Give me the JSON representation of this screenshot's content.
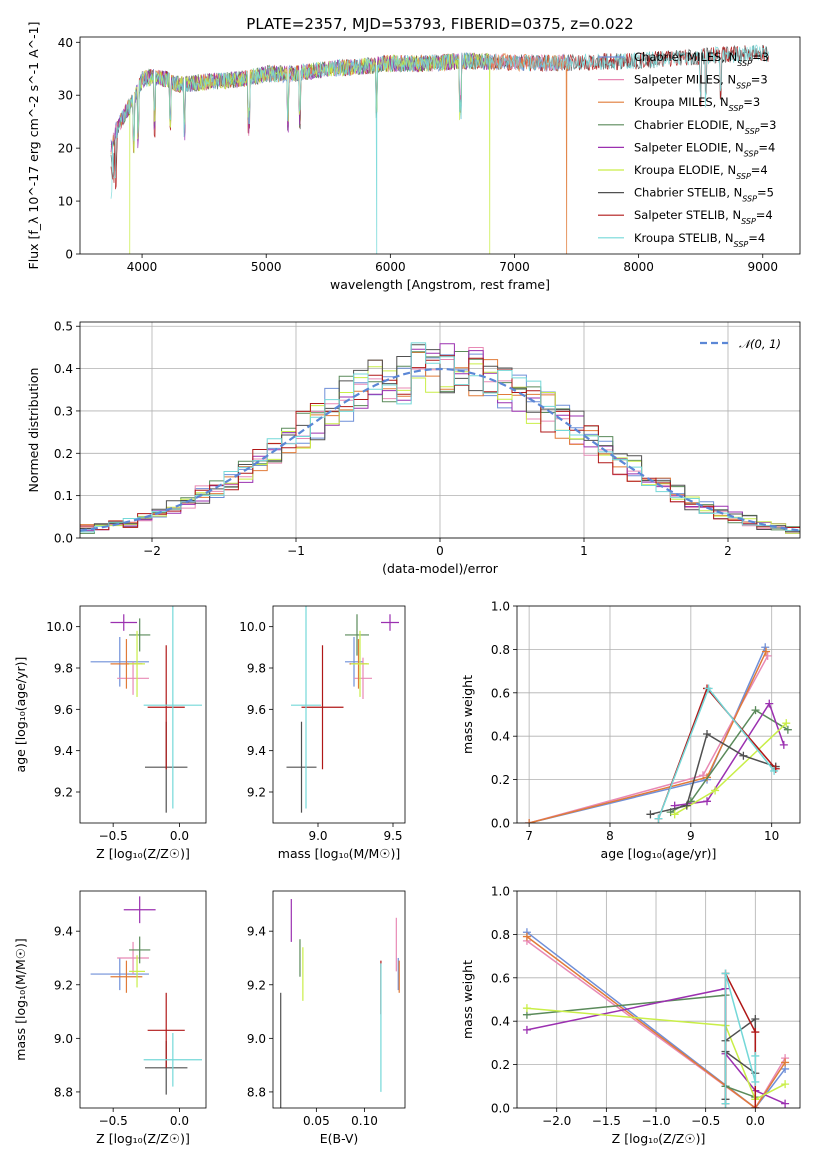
{
  "figure": {
    "title": "PLATE=2357, MJD=53793, FIBERID=0375, z=0.022"
  },
  "models": [
    {
      "name": "Chabrier MILES",
      "nssp": "3",
      "color": "#6f8fd8"
    },
    {
      "name": "Salpeter MILES",
      "nssp": "3",
      "color": "#e889b5"
    },
    {
      "name": "Kroupa MILES",
      "nssp": "3",
      "color": "#e07b39"
    },
    {
      "name": "Chabrier ELODIE",
      "nssp": "3",
      "color": "#5a8a5a"
    },
    {
      "name": "Salpeter ELODIE",
      "nssp": "4",
      "color": "#9b30b0"
    },
    {
      "name": "Kroupa ELODIE",
      "nssp": "4",
      "color": "#c9ee48"
    },
    {
      "name": "Chabrier STELIB",
      "nssp": "5",
      "color": "#505050"
    },
    {
      "name": "Salpeter STELIB",
      "nssp": "4",
      "color": "#b01818"
    },
    {
      "name": "Kroupa STELIB",
      "nssp": "4",
      "color": "#74d8d8"
    }
  ],
  "chart_data": [
    {
      "id": "spectrum",
      "type": "line",
      "xlabel": "wavelength [Angstrom, rest frame]",
      "ylabel": "Flux [f_λ 10^-17 erg cm^-2 s^-1 A^-1]",
      "xlim": [
        3500,
        9300
      ],
      "ylim": [
        0,
        41
      ],
      "xticks": [
        4000,
        5000,
        6000,
        7000,
        8000,
        9000
      ],
      "yticks": [
        0,
        10,
        20,
        30,
        40
      ],
      "continuum": {
        "x": [
          3750,
          3800,
          3850,
          3900,
          3950,
          4000,
          4100,
          4200,
          4300,
          4500,
          4800,
          5000,
          5200,
          5500,
          5800,
          6000,
          6300,
          6600,
          7000,
          7300,
          7500,
          8000,
          8300,
          8600,
          9000,
          9100
        ],
        "y": [
          20,
          24,
          26,
          28,
          30,
          33,
          33.5,
          33,
          32,
          32.5,
          33,
          34,
          34,
          35,
          35.5,
          36,
          36,
          36.5,
          36.2,
          36,
          36.2,
          36.5,
          37,
          37.5,
          38,
          37.5
        ]
      },
      "series_range": [
        {
          "series": "Chabrier MILES",
          "x": [
            3750,
            7450
          ]
        },
        {
          "series": "Salpeter MILES",
          "x": [
            3750,
            7450
          ]
        },
        {
          "series": "Kroupa MILES",
          "x": [
            3750,
            7450
          ]
        },
        {
          "series": "Chabrier ELODIE",
          "x": [
            3750,
            6800
          ]
        },
        {
          "series": "Salpeter ELODIE",
          "x": [
            3750,
            6800
          ]
        },
        {
          "series": "Kroupa ELODIE",
          "x": [
            3900,
            6800
          ]
        },
        {
          "series": "Chabrier STELIB",
          "x": [
            3750,
            9050
          ]
        },
        {
          "series": "Salpeter STELIB",
          "x": [
            3750,
            9050
          ]
        },
        {
          "series": "Kroupa STELIB",
          "x": [
            3750,
            9050
          ]
        }
      ],
      "drops": [
        {
          "x": 3900,
          "series": "Kroupa ELODIE"
        },
        {
          "x": 5890,
          "series": "Kroupa STELIB"
        },
        {
          "x": 6800,
          "series": "Kroupa ELODIE"
        },
        {
          "x": 7420,
          "series": "Kroupa MILES"
        }
      ]
    },
    {
      "id": "residuals",
      "type": "histogram",
      "xlabel": "(data-model)/error",
      "ylabel": "Normed distribution",
      "xlim": [
        -2.5,
        2.5
      ],
      "ylim": [
        0,
        0.51
      ],
      "xticks": [
        -2,
        -1,
        0,
        1,
        2
      ],
      "xtick_labels": [
        "−2",
        "−1",
        "0",
        "1",
        "2"
      ],
      "yticks": [
        0.0,
        0.1,
        0.2,
        0.3,
        0.4,
        0.5
      ],
      "ytick_labels": [
        "0.0",
        "0.1",
        "0.2",
        "0.3",
        "0.4",
        "0.5"
      ],
      "bin_width": 0.1,
      "legend": {
        "label": "𝒩(0, 1)",
        "placement": "top-right"
      },
      "grid": true
    },
    {
      "id": "age-vs-Z",
      "type": "errorbar",
      "xlabel": "Z [log₁₀(Z/Z☉)]",
      "ylabel": "age  [log₁₀(age/yr)]",
      "xlim": [
        -0.75,
        0.2
      ],
      "ylim": [
        9.05,
        10.1
      ],
      "xticks": [
        -0.5,
        0.0
      ],
      "xtick_labels": [
        "−0.5",
        "0.0"
      ],
      "yticks": [
        9.2,
        9.4,
        9.6,
        9.8,
        10.0
      ],
      "ytick_labels": [
        "9.2",
        "9.4",
        "9.6",
        "9.8",
        "10.0"
      ],
      "points": [
        {
          "series": "Chabrier MILES",
          "x": -0.45,
          "xerr": 0.22,
          "y": 9.83,
          "yerr": 0.12
        },
        {
          "series": "Salpeter MILES",
          "x": -0.35,
          "xerr": 0.12,
          "y": 9.75,
          "yerr": 0.08
        },
        {
          "series": "Kroupa MILES",
          "x": -0.4,
          "xerr": 0.12,
          "y": 9.82,
          "yerr": 0.12
        },
        {
          "series": "Chabrier ELODIE",
          "x": -0.3,
          "xerr": 0.08,
          "y": 9.96,
          "yerr": 0.08
        },
        {
          "series": "Salpeter ELODIE",
          "x": -0.42,
          "xerr": 0.1,
          "y": 10.02,
          "yerr": 0.04
        },
        {
          "series": "Kroupa ELODIE",
          "x": -0.32,
          "xerr": 0.06,
          "y": 9.82,
          "yerr": 0.16
        },
        {
          "series": "Chabrier STELIB",
          "x": -0.1,
          "xerr": 0.16,
          "y": 9.32,
          "yerr": 0.22
        },
        {
          "series": "Salpeter STELIB",
          "x": -0.1,
          "xerr": 0.14,
          "y": 9.61,
          "yerr": 0.3
        },
        {
          "series": "Kroupa STELIB",
          "x": -0.05,
          "xerr": 0.22,
          "y": 9.62,
          "yerr": 0.5
        }
      ]
    },
    {
      "id": "age-vs-mass",
      "type": "errorbar",
      "xlabel": "mass [log₁₀(M/M☉)]",
      "ylabel": "",
      "xlim": [
        8.7,
        9.58
      ],
      "ylim": [
        9.05,
        10.1
      ],
      "xticks": [
        9.0,
        9.5
      ],
      "xtick_labels": [
        "9.0",
        "9.5"
      ],
      "yticks": [
        9.2,
        9.4,
        9.6,
        9.8,
        10.0
      ],
      "ytick_labels": [
        "9.2",
        "9.4",
        "9.6",
        "9.8",
        "10.0"
      ],
      "points": [
        {
          "series": "Chabrier MILES",
          "x": 9.24,
          "xerr": 0.06,
          "y": 9.83,
          "yerr": 0.12
        },
        {
          "series": "Salpeter MILES",
          "x": 9.3,
          "xerr": 0.06,
          "y": 9.75,
          "yerr": 0.1
        },
        {
          "series": "Kroupa MILES",
          "x": 9.27,
          "xerr": 0.06,
          "y": 9.82,
          "yerr": 0.12
        },
        {
          "series": "Chabrier ELODIE",
          "x": 9.26,
          "xerr": 0.08,
          "y": 9.96,
          "yerr": 0.1
        },
        {
          "series": "Salpeter ELODIE",
          "x": 9.48,
          "xerr": 0.06,
          "y": 10.02,
          "yerr": 0.04
        },
        {
          "series": "Kroupa ELODIE",
          "x": 9.28,
          "xerr": 0.06,
          "y": 9.82,
          "yerr": 0.16
        },
        {
          "series": "Chabrier STELIB",
          "x": 8.89,
          "xerr": 0.1,
          "y": 9.32,
          "yerr": 0.22
        },
        {
          "series": "Salpeter STELIB",
          "x": 9.03,
          "xerr": 0.14,
          "y": 9.61,
          "yerr": 0.3
        },
        {
          "series": "Kroupa STELIB",
          "x": 8.92,
          "xerr": 0.1,
          "y": 9.62,
          "yerr": 0.5
        }
      ]
    },
    {
      "id": "weight-vs-age",
      "type": "line",
      "xlabel": "age  [log₁₀(age/yr)]",
      "ylabel": "mass weight",
      "xlim": [
        6.85,
        10.35
      ],
      "ylim": [
        0,
        1
      ],
      "xticks": [
        7,
        8,
        9,
        10
      ],
      "xtick_labels": [
        "7",
        "8",
        "9",
        "10"
      ],
      "yticks": [
        0,
        0.2,
        0.4,
        0.6,
        0.8,
        1.0
      ],
      "ytick_labels": [
        "0.0",
        "0.2",
        "0.4",
        "0.6",
        "0.8",
        "1.0"
      ],
      "grid": true,
      "series": [
        {
          "name": "Chabrier MILES",
          "x": [
            7.0,
            9.2,
            9.92
          ],
          "y": [
            0.0,
            0.2,
            0.81
          ]
        },
        {
          "name": "Salpeter MILES",
          "x": [
            7.0,
            9.15,
            9.95
          ],
          "y": [
            0.0,
            0.22,
            0.77
          ]
        },
        {
          "name": "Kroupa MILES",
          "x": [
            7.0,
            9.2,
            9.93
          ],
          "y": [
            0.0,
            0.21,
            0.79
          ]
        },
        {
          "name": "Chabrier ELODIE",
          "x": [
            8.75,
            9.0,
            9.8,
            10.2
          ],
          "y": [
            0.05,
            0.1,
            0.52,
            0.43
          ]
        },
        {
          "name": "Salpeter ELODIE",
          "x": [
            8.8,
            9.2,
            9.97,
            10.15
          ],
          "y": [
            0.08,
            0.1,
            0.55,
            0.36
          ]
        },
        {
          "name": "Kroupa ELODIE",
          "x": [
            8.8,
            9.3,
            10.18
          ],
          "y": [
            0.04,
            0.15,
            0.46
          ]
        },
        {
          "name": "Chabrier STELIB",
          "x": [
            8.5,
            8.95,
            9.2,
            9.65,
            10.05
          ],
          "y": [
            0.04,
            0.08,
            0.41,
            0.31,
            0.26
          ]
        },
        {
          "name": "Salpeter STELIB",
          "x": [
            8.6,
            9.2,
            10.05
          ],
          "y": [
            0.02,
            0.62,
            0.25
          ]
        },
        {
          "name": "Kroupa STELIB",
          "x": [
            8.6,
            9.22,
            10.03
          ],
          "y": [
            0.02,
            0.62,
            0.24
          ]
        }
      ]
    },
    {
      "id": "mass-vs-Z",
      "type": "errorbar",
      "xlabel": "Z [log₁₀(Z/Z☉)]",
      "ylabel": "mass [log₁₀(M/M☉)]",
      "xlim": [
        -0.75,
        0.2
      ],
      "ylim": [
        8.74,
        9.55
      ],
      "xticks": [
        -0.5,
        0.0
      ],
      "xtick_labels": [
        "−0.5",
        "0.0"
      ],
      "yticks": [
        8.8,
        9.0,
        9.2,
        9.4
      ],
      "ytick_labels": [
        "8.8",
        "9.0",
        "9.2",
        "9.4"
      ],
      "points": [
        {
          "series": "Chabrier MILES",
          "x": -0.45,
          "xerr": 0.22,
          "y": 9.24,
          "yerr": 0.06
        },
        {
          "series": "Salpeter MILES",
          "x": -0.35,
          "xerr": 0.12,
          "y": 9.3,
          "yerr": 0.06
        },
        {
          "series": "Kroupa MILES",
          "x": -0.4,
          "xerr": 0.12,
          "y": 9.23,
          "yerr": 0.06
        },
        {
          "series": "Chabrier ELODIE",
          "x": -0.3,
          "xerr": 0.08,
          "y": 9.33,
          "yerr": 0.05
        },
        {
          "series": "Salpeter ELODIE",
          "x": -0.3,
          "xerr": 0.12,
          "y": 9.48,
          "yerr": 0.05
        },
        {
          "series": "Kroupa ELODIE",
          "x": -0.32,
          "xerr": 0.06,
          "y": 9.25,
          "yerr": 0.06
        },
        {
          "series": "Chabrier STELIB",
          "x": -0.1,
          "xerr": 0.16,
          "y": 8.89,
          "yerr": 0.1
        },
        {
          "series": "Salpeter STELIB",
          "x": -0.1,
          "xerr": 0.14,
          "y": 9.03,
          "yerr": 0.14
        },
        {
          "series": "Kroupa STELIB",
          "x": -0.05,
          "xerr": 0.22,
          "y": 8.92,
          "yerr": 0.1
        }
      ]
    },
    {
      "id": "mass-vs-ebv",
      "type": "errorbar",
      "xlabel": "E(B-V)",
      "ylabel": "",
      "xlim": [
        0.005,
        0.142
      ],
      "ylim": [
        8.74,
        9.55
      ],
      "xticks": [
        0.05,
        0.1
      ],
      "xtick_labels": [
        "0.05",
        "0.10"
      ],
      "yticks": [
        8.8,
        9.0,
        9.2,
        9.4
      ],
      "ytick_labels": [
        "8.8",
        "9.0",
        "9.2",
        "9.4"
      ],
      "points": [
        {
          "series": "Chabrier MILES",
          "x": 0.135,
          "y": 9.24,
          "yerr": 0.06
        },
        {
          "series": "Salpeter MILES",
          "x": 0.133,
          "y": 9.35,
          "yerr": 0.1
        },
        {
          "series": "Kroupa MILES",
          "x": 0.136,
          "y": 9.23,
          "yerr": 0.06
        },
        {
          "series": "Chabrier ELODIE",
          "x": 0.033,
          "y": 9.3,
          "yerr": 0.07
        },
        {
          "series": "Salpeter ELODIE",
          "x": 0.024,
          "y": 9.44,
          "yerr": 0.08
        },
        {
          "series": "Kroupa ELODIE",
          "x": 0.036,
          "y": 9.24,
          "yerr": 0.1
        },
        {
          "series": "Chabrier STELIB",
          "x": 0.013,
          "y": 8.95,
          "yerr": 0.22
        },
        {
          "series": "Salpeter STELIB",
          "x": 0.117,
          "y": 9.19,
          "yerr": 0.1
        },
        {
          "series": "Kroupa STELIB",
          "x": 0.117,
          "y": 9.04,
          "yerr": 0.24
        }
      ]
    },
    {
      "id": "weight-vs-Z",
      "type": "line",
      "xlabel": "Z [log₁₀(Z/Z☉)]",
      "ylabel": "mass weight",
      "xlim": [
        -2.4,
        0.45
      ],
      "ylim": [
        0,
        1
      ],
      "xticks": [
        -2.0,
        -1.5,
        -1.0,
        -0.5,
        0.0
      ],
      "xtick_labels": [
        "−2.0",
        "−1.5",
        "−1.0",
        "−0.5",
        "0.0"
      ],
      "yticks": [
        0,
        0.2,
        0.4,
        0.6,
        0.8,
        1.0
      ],
      "ytick_labels": [
        "0.0",
        "0.2",
        "0.4",
        "0.6",
        "0.8",
        "1.0"
      ],
      "grid": true,
      "series": [
        {
          "name": "Chabrier MILES",
          "x": [
            -2.3,
            0.0,
            0.3
          ],
          "y": [
            0.81,
            0.0,
            0.18
          ]
        },
        {
          "name": "Salpeter MILES",
          "x": [
            -2.3,
            0.0,
            0.3
          ],
          "y": [
            0.77,
            0.0,
            0.23
          ]
        },
        {
          "name": "Kroupa MILES",
          "x": [
            -2.3,
            0.0,
            0.3
          ],
          "y": [
            0.79,
            0.0,
            0.21
          ]
        },
        {
          "name": "Chabrier ELODIE",
          "x": [
            -2.3,
            -0.3,
            -0.3,
            0.0
          ],
          "y": [
            0.43,
            0.52,
            0.1,
            0.05
          ]
        },
        {
          "name": "Salpeter ELODIE",
          "x": [
            -2.3,
            -0.3,
            -0.3,
            0.0,
            0.3
          ],
          "y": [
            0.36,
            0.55,
            0.25,
            0.08,
            0.02
          ]
        },
        {
          "name": "Kroupa ELODIE",
          "x": [
            -2.3,
            -0.3,
            0.0,
            0.3
          ],
          "y": [
            0.46,
            0.38,
            0.04,
            0.11
          ]
        },
        {
          "name": "Chabrier STELIB",
          "x": [
            -0.3,
            -0.3,
            0.0,
            0.0,
            -0.3
          ],
          "y": [
            0.04,
            0.31,
            0.41,
            0.16,
            0.26
          ]
        },
        {
          "name": "Salpeter STELIB",
          "x": [
            -0.3,
            -0.3,
            0.0,
            0.0
          ],
          "y": [
            0.02,
            0.62,
            0.35,
            0.0
          ]
        },
        {
          "name": "Kroupa STELIB",
          "x": [
            -0.3,
            -0.3,
            0.0,
            0.0
          ],
          "y": [
            0.02,
            0.62,
            0.12,
            0.24
          ]
        }
      ]
    }
  ]
}
